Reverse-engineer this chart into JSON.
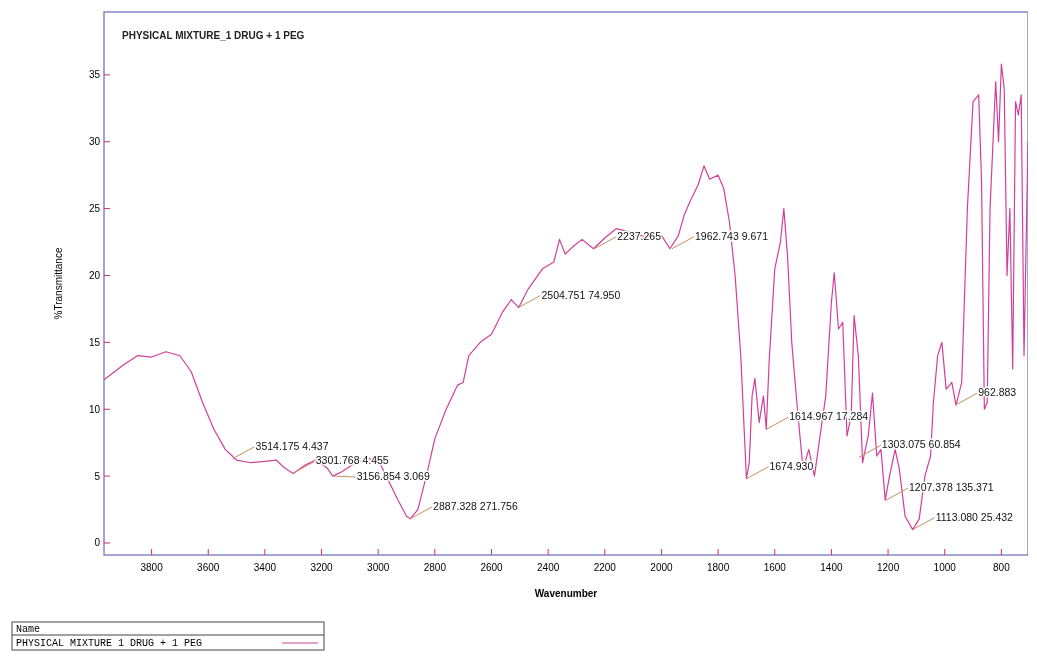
{
  "chart_data": {
    "type": "line",
    "title": "PHYSICAL MIXTURE_1 DRUG + 1 PEG",
    "xlabel": "Wavenumber",
    "ylabel": "%Transmittance",
    "legend_title": "Name",
    "legend": "bottom left",
    "grid": false,
    "marker": "none",
    "line_style": "solid",
    "xlim": [
      3968,
      706
    ],
    "xticks": [
      3800,
      3600,
      3400,
      3200,
      3000,
      2800,
      2600,
      2400,
      2200,
      2000,
      1800,
      1600,
      1400,
      1200,
      1000,
      800
    ],
    "ylim": [
      -0.9,
      39.7
    ],
    "yticks": [
      0,
      5,
      10,
      15,
      20,
      25,
      30,
      35
    ],
    "x": [
      3968,
      3900,
      3850,
      3800,
      3750,
      3700,
      3660,
      3620,
      3580,
      3540,
      3500,
      3450,
      3400,
      3360,
      3330,
      3300,
      3260,
      3220,
      3180,
      3160,
      3130,
      3080,
      3030,
      2990,
      2960,
      2930,
      2900,
      2887,
      2860,
      2830,
      2800,
      2760,
      2720,
      2700,
      2680,
      2640,
      2600,
      2560,
      2530,
      2504,
      2470,
      2420,
      2380,
      2360,
      2340,
      2310,
      2280,
      2240,
      2200,
      2160,
      2120,
      2080,
      2040,
      2000,
      1970,
      1940,
      1920,
      1900,
      1870,
      1850,
      1830,
      1800,
      1780,
      1760,
      1740,
      1720,
      1700,
      1690,
      1680,
      1670,
      1655,
      1640,
      1630,
      1620,
      1600,
      1580,
      1568,
      1555,
      1540,
      1520,
      1500,
      1480,
      1460,
      1440,
      1420,
      1400,
      1390,
      1375,
      1360,
      1345,
      1330,
      1320,
      1305,
      1290,
      1270,
      1255,
      1240,
      1225,
      1210,
      1195,
      1175,
      1160,
      1140,
      1113,
      1090,
      1070,
      1050,
      1040,
      1025,
      1010,
      995,
      975,
      960,
      940,
      920,
      900,
      880,
      870,
      860,
      850,
      840,
      820,
      810,
      800,
      790,
      780,
      770,
      760,
      750,
      740,
      730,
      720,
      706
    ],
    "series": [
      {
        "name": "PHYSICAL MIXTURE 1 DRUG + 1 PEG",
        "color": "#d0409a",
        "values": [
          12.2,
          13.3,
          14.0,
          13.9,
          14.3,
          14.0,
          12.8,
          10.5,
          8.5,
          7.0,
          6.2,
          6.0,
          6.1,
          6.2,
          5.6,
          5.2,
          5.8,
          6.2,
          5.6,
          5.0,
          5.3,
          6.0,
          6.3,
          5.8,
          4.5,
          3.2,
          2.0,
          1.8,
          2.5,
          5.0,
          7.8,
          10.0,
          11.8,
          12.0,
          14.0,
          15.0,
          15.6,
          17.3,
          18.2,
          17.6,
          19.0,
          20.5,
          21.0,
          22.7,
          21.6,
          22.2,
          22.7,
          22.0,
          22.8,
          23.5,
          23.3,
          23.0,
          22.9,
          23.0,
          22.0,
          23.0,
          24.5,
          25.5,
          26.8,
          28.2,
          27.2,
          27.5,
          26.5,
          24.0,
          20.0,
          14.0,
          4.8,
          6.0,
          11.0,
          12.3,
          9.0,
          11.0,
          8.5,
          13.5,
          20.5,
          22.5,
          25.0,
          21.5,
          15.0,
          10.0,
          5.5,
          7.0,
          5.0,
          8.0,
          11.0,
          18.0,
          20.2,
          16.0,
          16.5,
          8.0,
          9.5,
          17.0,
          14.0,
          6.0,
          8.0,
          11.2,
          6.5,
          7.0,
          3.2,
          5.0,
          7.0,
          5.5,
          2.0,
          1.0,
          1.8,
          5.0,
          6.5,
          10.5,
          14.0,
          15.0,
          11.5,
          12.0,
          10.3,
          12.0,
          25.0,
          33.0,
          33.5,
          27.0,
          10.0,
          10.5,
          25.0,
          34.5,
          30.0,
          35.8,
          34.0,
          20.0,
          25.0,
          13.0,
          33.0,
          32.0,
          33.5,
          14.0,
          30.0
        ]
      }
    ],
    "annotations": [
      {
        "text": "3514.175  4.437",
        "x": 3514.175,
        "y": 6.3
      },
      {
        "text": "3301.768  4.455",
        "x": 3301.768,
        "y": 5.2
      },
      {
        "text": "3156.854  3.069",
        "x": 3156.854,
        "y": 5.0
      },
      {
        "text": "2887.328  271.756",
        "x": 2887.328,
        "y": 1.8
      },
      {
        "text": "2504.751  74.950",
        "x": 2504.751,
        "y": 17.6
      },
      {
        "text": "2237.265",
        "x": 2237.265,
        "y": 22.0
      },
      {
        "text": "1962.743  9.671",
        "x": 1962.743,
        "y": 22.0
      },
      {
        "text": "1614.967  17.284",
        "x": 1630,
        "y": 8.5
      },
      {
        "text": "1674.930",
        "x": 1700,
        "y": 4.8
      },
      {
        "text": "1303.075  60.854",
        "x": 1303.075,
        "y": 6.4
      },
      {
        "text": "1207.378  135.371",
        "x": 1207.378,
        "y": 3.2
      },
      {
        "text": "1113.080  25.432",
        "x": 1113.08,
        "y": 1.0
      },
      {
        "text": "962.883",
        "x": 962.883,
        "y": 10.3
      }
    ]
  }
}
